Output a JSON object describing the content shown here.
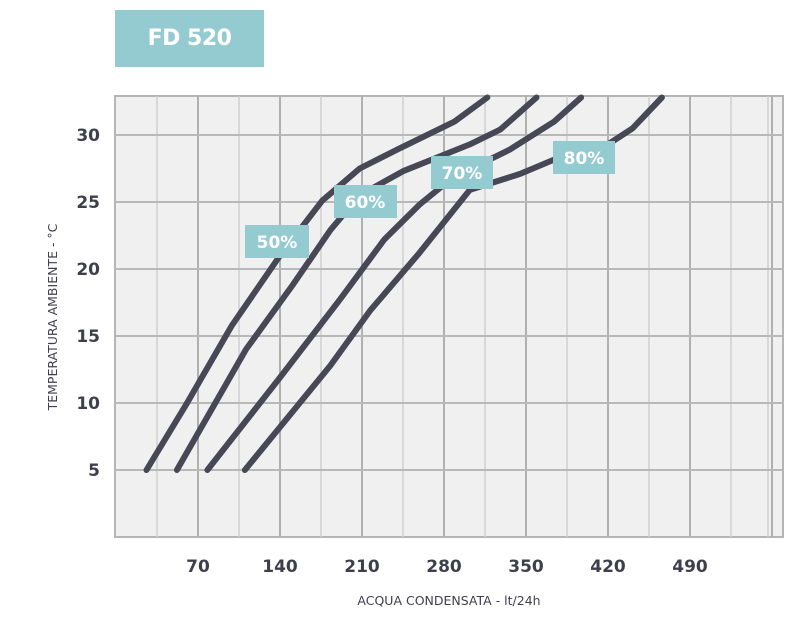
{
  "header": {
    "title": "FD 520"
  },
  "colors": {
    "accent": "#94cbd1",
    "curve": "#474755",
    "grid_bg": "#f0f0f1",
    "grid_line": "#bdbdbd",
    "text": "#3f3f4c"
  },
  "chart_data": {
    "type": "line",
    "title": "FD 520",
    "xlabel": "ACQUA CONDENSATA - lt/24h",
    "ylabel": "TEMPERATURA AMBIENTE - °C",
    "xlim": [
      0,
      560
    ],
    "ylim": [
      0,
      32.5
    ],
    "x_ticks": [
      70,
      140,
      210,
      280,
      350,
      420,
      490
    ],
    "y_ticks": [
      5,
      10,
      15,
      20,
      25,
      30
    ],
    "grid": true,
    "legend": "inline labels on curves",
    "series": [
      {
        "name": "50%",
        "x": [
          26,
          60,
          99,
          140,
          176,
          208,
          242,
          289,
          317
        ],
        "y": [
          5,
          9.9,
          15.8,
          21.0,
          25.1,
          27.5,
          29.0,
          31.0,
          32.8
        ]
      },
      {
        "name": "60%",
        "x": [
          52,
          111,
          150,
          183,
          208,
          245,
          302,
          328,
          359
        ],
        "y": [
          5,
          14.0,
          18.7,
          22.9,
          25.5,
          27.3,
          29.3,
          30.4,
          32.8
        ]
      },
      {
        "name": "70%",
        "x": [
          78,
          140,
          191,
          229,
          259,
          287,
          336,
          374,
          397
        ],
        "y": [
          5,
          11.9,
          17.7,
          22.2,
          24.8,
          26.8,
          28.9,
          31.0,
          32.8
        ]
      },
      {
        "name": "80%",
        "x": [
          110,
          183,
          217,
          259,
          302,
          345,
          375,
          413,
          441,
          466
        ],
        "y": [
          5,
          12.8,
          16.9,
          21.2,
          25.9,
          27.1,
          28.2,
          28.9,
          30.5,
          32.8
        ]
      }
    ]
  },
  "labels": [
    "50%",
    "60%",
    "70%",
    "80%"
  ],
  "y_ticks_text": [
    "30",
    "25",
    "20",
    "15",
    "10",
    "5"
  ],
  "x_ticks_text": [
    "70",
    "140",
    "210",
    "280",
    "350",
    "420",
    "490"
  ]
}
